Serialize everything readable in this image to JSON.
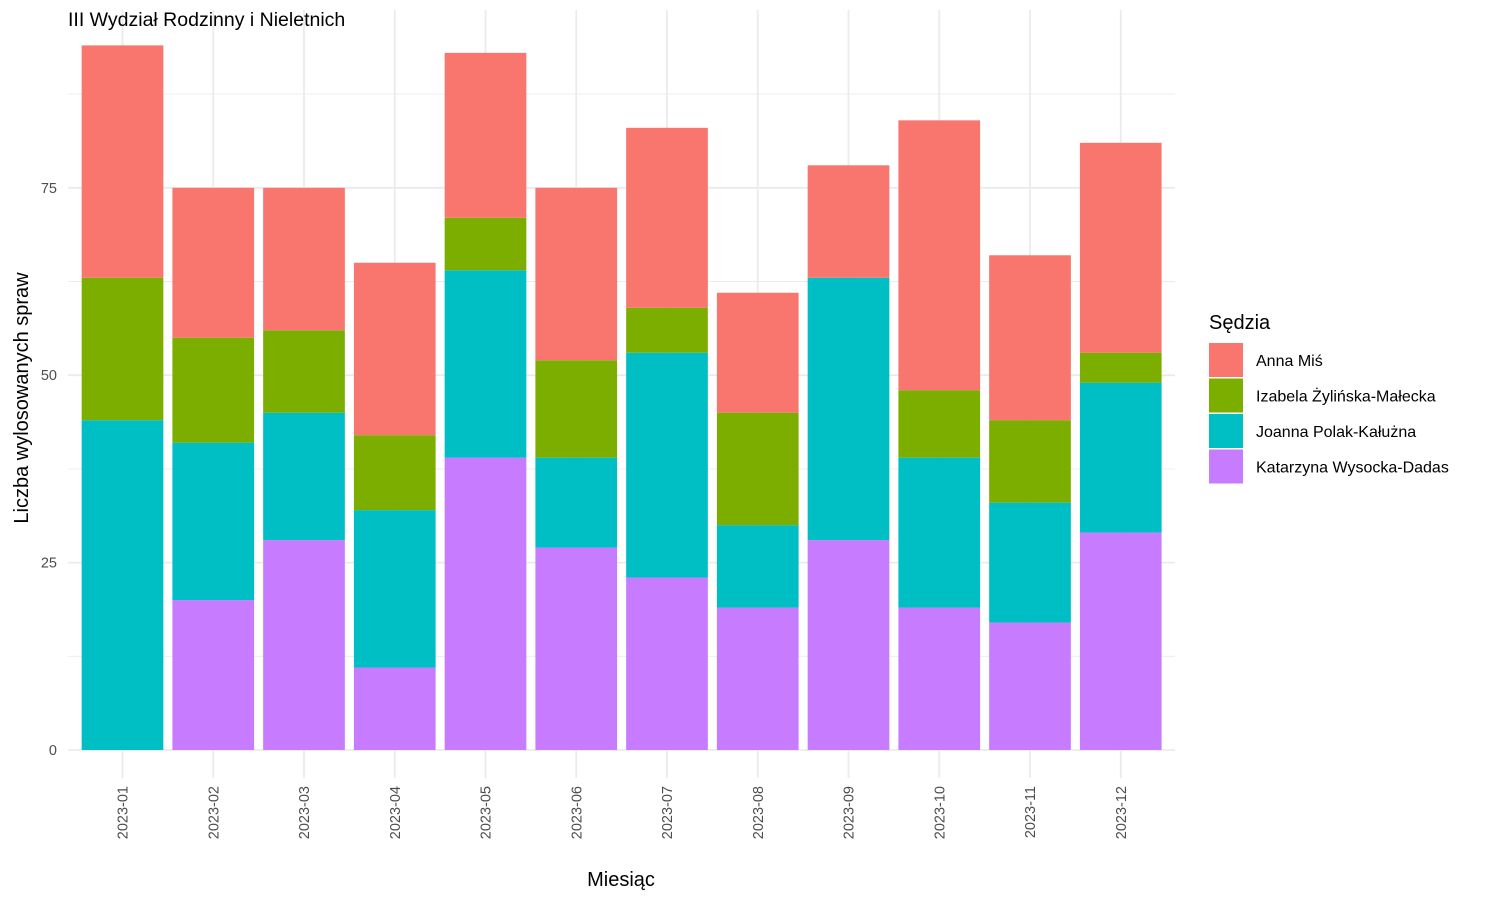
{
  "chart_data": {
    "type": "bar",
    "stacked": true,
    "title": "III Wydział Rodzinny i Nieletnich",
    "xlabel": "Miesiąc",
    "ylabel": "Liczba wylosowanych spraw",
    "ylim": [
      0,
      97
    ],
    "yticks": [
      0,
      25,
      50,
      75
    ],
    "grid": true,
    "legend_title": "Sędzia",
    "legend_position": "right",
    "categories": [
      "2023-01",
      "2023-02",
      "2023-03",
      "2023-04",
      "2023-05",
      "2023-06",
      "2023-07",
      "2023-08",
      "2023-09",
      "2023-10",
      "2023-11",
      "2023-12"
    ],
    "series": [
      {
        "name": "Katarzyna Wysocka-Dadas",
        "color": "#C77CFF",
        "values": [
          0,
          20,
          28,
          11,
          39,
          27,
          23,
          19,
          28,
          19,
          17,
          29
        ]
      },
      {
        "name": "Joanna Polak-Kałużna",
        "color": "#00BFC4",
        "values": [
          44,
          21,
          17,
          21,
          25,
          12,
          30,
          11,
          35,
          20,
          16,
          20
        ]
      },
      {
        "name": "Izabela Żylińska-Małecka",
        "color": "#7CAE00",
        "values": [
          19,
          14,
          11,
          10,
          7,
          13,
          6,
          15,
          0,
          9,
          11,
          4
        ]
      },
      {
        "name": "Anna Miś",
        "color": "#F8766D",
        "values": [
          31,
          20,
          19,
          23,
          22,
          23,
          24,
          16,
          15,
          36,
          22,
          28
        ]
      }
    ],
    "legend_order": [
      "Anna Miś",
      "Izabela Żylińska-Małecka",
      "Joanna Polak-Kałużna",
      "Katarzyna Wysocka-Dadas"
    ]
  }
}
